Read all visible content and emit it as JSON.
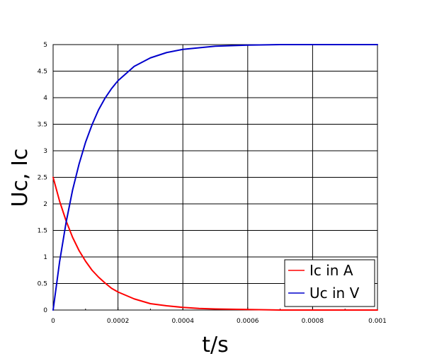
{
  "chart_data": {
    "type": "line",
    "xlabel": "t/s",
    "ylabel": "Uc, Ic",
    "xlim": [
      0,
      0.001
    ],
    "ylim": [
      0,
      5
    ],
    "grid": true,
    "legend_position": "bottom-right",
    "x_ticks": [
      0,
      0.0002,
      0.0004,
      0.0006,
      0.0008,
      0.001
    ],
    "x_tick_labels": [
      "0",
      "0.0002",
      "0.0004",
      "0.0006",
      "0.0008",
      "0.001"
    ],
    "y_ticks": [
      0,
      0.5,
      1,
      1.5,
      2,
      2.5,
      3,
      3.5,
      4,
      4.5,
      5
    ],
    "y_tick_labels": [
      "0",
      "0.5",
      "1",
      "1.5",
      "2",
      "2.5",
      "3",
      "3.5",
      "4",
      "4.5",
      "5"
    ],
    "x": [
      0,
      2e-05,
      4e-05,
      6e-05,
      8e-05,
      0.0001,
      0.00012,
      0.00014,
      0.00016,
      0.00018,
      0.0002,
      0.00025,
      0.0003,
      0.00035,
      0.0004,
      0.00045,
      0.0005,
      0.0006,
      0.0007,
      0.0008,
      0.0009,
      0.001
    ],
    "series": [
      {
        "name": "Ic in A",
        "color": "#ff0000",
        "values": [
          2.5,
          2.05,
          1.68,
          1.37,
          1.12,
          0.92,
          0.75,
          0.62,
          0.51,
          0.41,
          0.34,
          0.21,
          0.12,
          0.08,
          0.05,
          0.03,
          0.02,
          0.01,
          0.0,
          0.0,
          0.0,
          0.0
        ]
      },
      {
        "name": "Uc in V",
        "color": "#0000cc",
        "values": [
          0,
          0.91,
          1.65,
          2.26,
          2.75,
          3.16,
          3.49,
          3.77,
          3.99,
          4.17,
          4.32,
          4.59,
          4.75,
          4.85,
          4.91,
          4.94,
          4.97,
          4.99,
          5.0,
          5.0,
          5.0,
          5.0
        ]
      }
    ]
  }
}
